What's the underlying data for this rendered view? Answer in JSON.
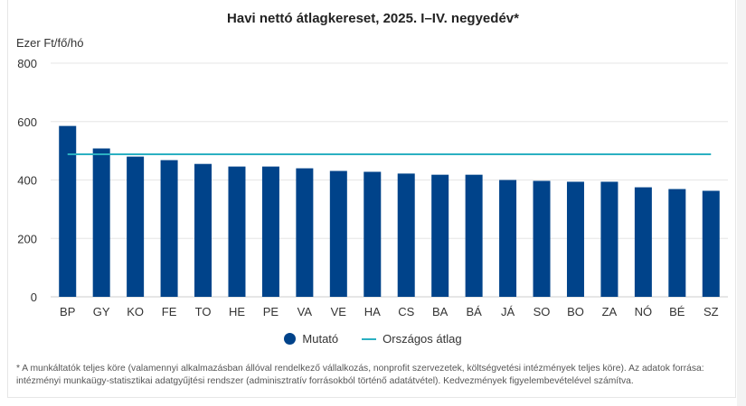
{
  "chart_data": {
    "type": "bar",
    "title": "Havi nettó átlagkereset, 2025. I–IV. negyedév*",
    "ylabel": "Ezer Ft/fő/hó",
    "xlabel": "",
    "ylim": [
      0,
      800
    ],
    "yticks": [
      0,
      200,
      400,
      600,
      800
    ],
    "grid": true,
    "legend_position": "bottom",
    "categories": [
      "BP",
      "GY",
      "KO",
      "FE",
      "TO",
      "HE",
      "PE",
      "VA",
      "VE",
      "HA",
      "CS",
      "BA",
      "BÁ",
      "JÁ",
      "SO",
      "BO",
      "ZA",
      "NÓ",
      "BÉ",
      "SZ"
    ],
    "series": [
      {
        "name": "Mutató",
        "type": "bar",
        "color": "#00438a",
        "values": [
          585,
          508,
          480,
          468,
          455,
          446,
          446,
          440,
          431,
          428,
          422,
          418,
          418,
          400,
          397,
          394,
          394,
          375,
          369,
          363
        ]
      },
      {
        "name": "Országos átlag",
        "type": "line",
        "color": "#2bb0c2",
        "value": 488
      }
    ]
  },
  "footnote": "* A munkáltatók teljes köre (valamennyi alkalmazásban állóval rendelkező vállalkozás, nonprofit szervezetek, költségvetési intézmények teljes köre). Az adatok forrása: intézményi munkaügy-statisztikai adatgyűjtési rendszer (adminisztratív forrásokból történő adatátvétel). Kedvezmények figyelembevételével számítva."
}
